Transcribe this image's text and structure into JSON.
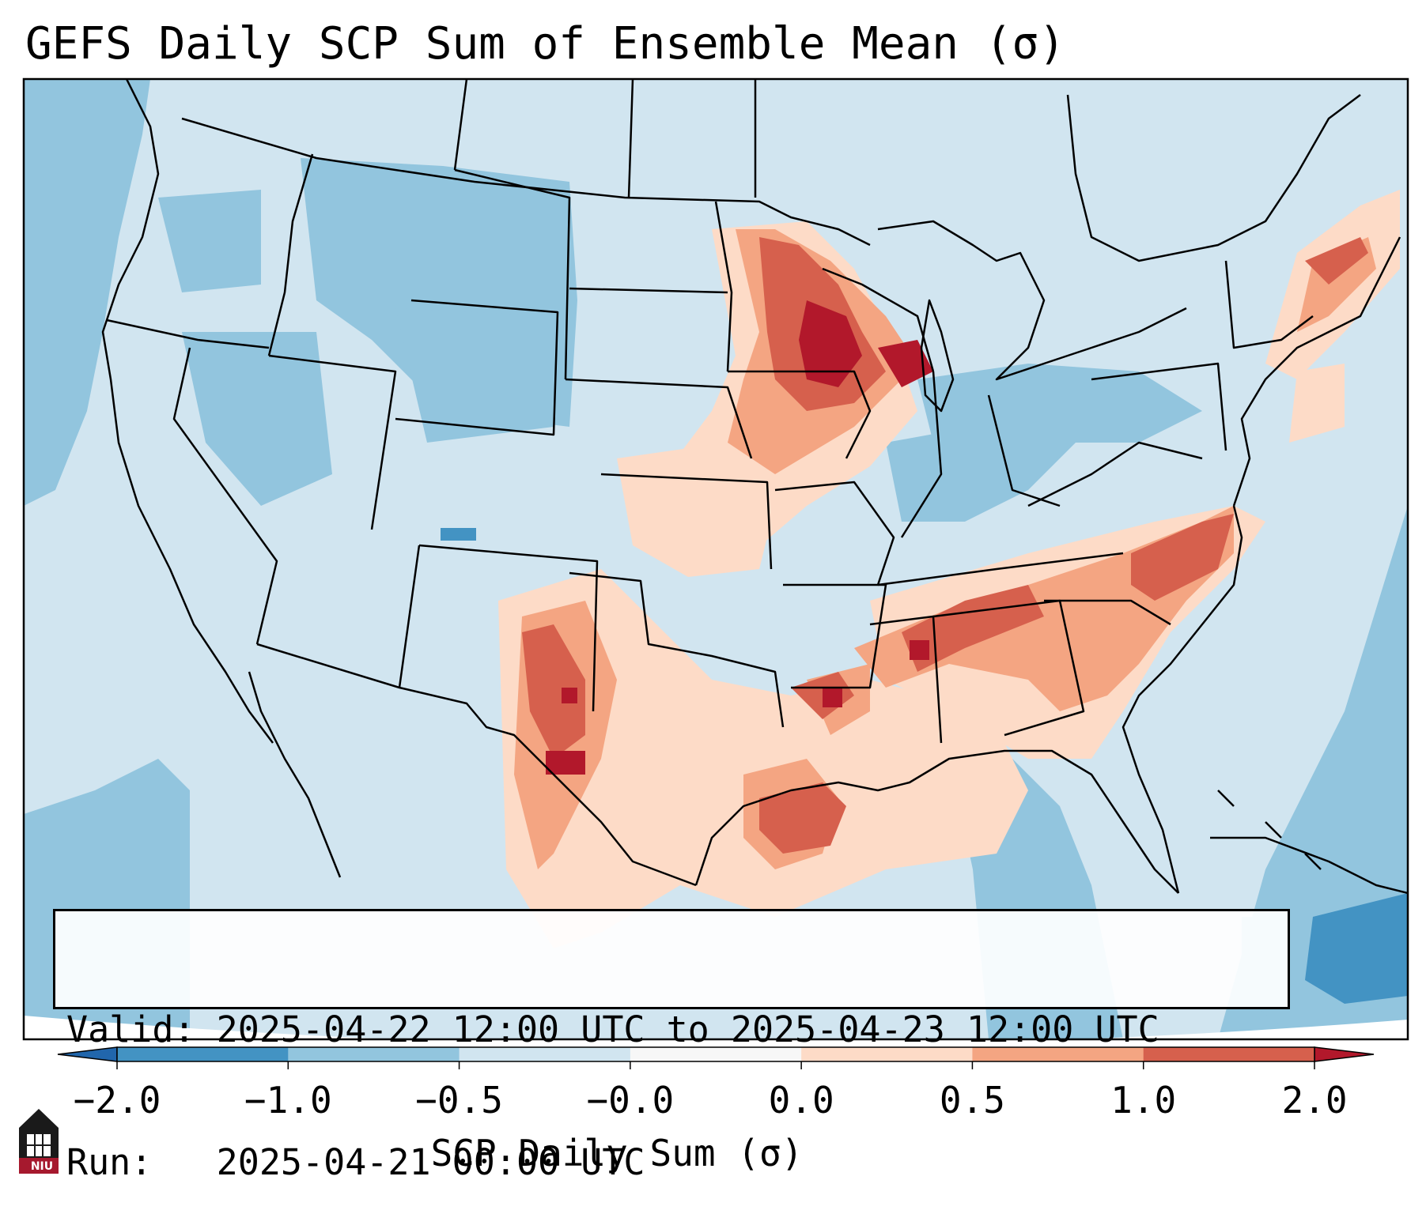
{
  "title": "GEFS Daily SCP Sum of Ensemble Mean (σ)",
  "info": {
    "valid_label": "Valid:",
    "valid_value": "2025-04-22 12:00 UTC to 2025-04-23 12:00 UTC",
    "run_label": "Run:",
    "run_value": "2025-04-21 00:00 UTC"
  },
  "colorbar": {
    "label": "SCP Daily Sum (σ)",
    "ticks": [
      "−2.0",
      "−1.0",
      "−0.5",
      "−0.0",
      "0.0",
      "0.5",
      "1.0",
      "2.0"
    ],
    "colors": [
      "#4393c3",
      "#92c5de",
      "#d1e5f0",
      "#f7f7f7",
      "#fddbc7",
      "#f4a582",
      "#d6604d"
    ],
    "under_color": "#2166ac",
    "over_color": "#b2182b",
    "extend": "both"
  },
  "map": {
    "projection": "Lambert Conformal",
    "background_level_color": "#d1e5f0",
    "ocean_color": "#92c5de",
    "border_color": "#000000"
  },
  "logo": {
    "text": "NIU",
    "color": "#a6192e"
  }
}
